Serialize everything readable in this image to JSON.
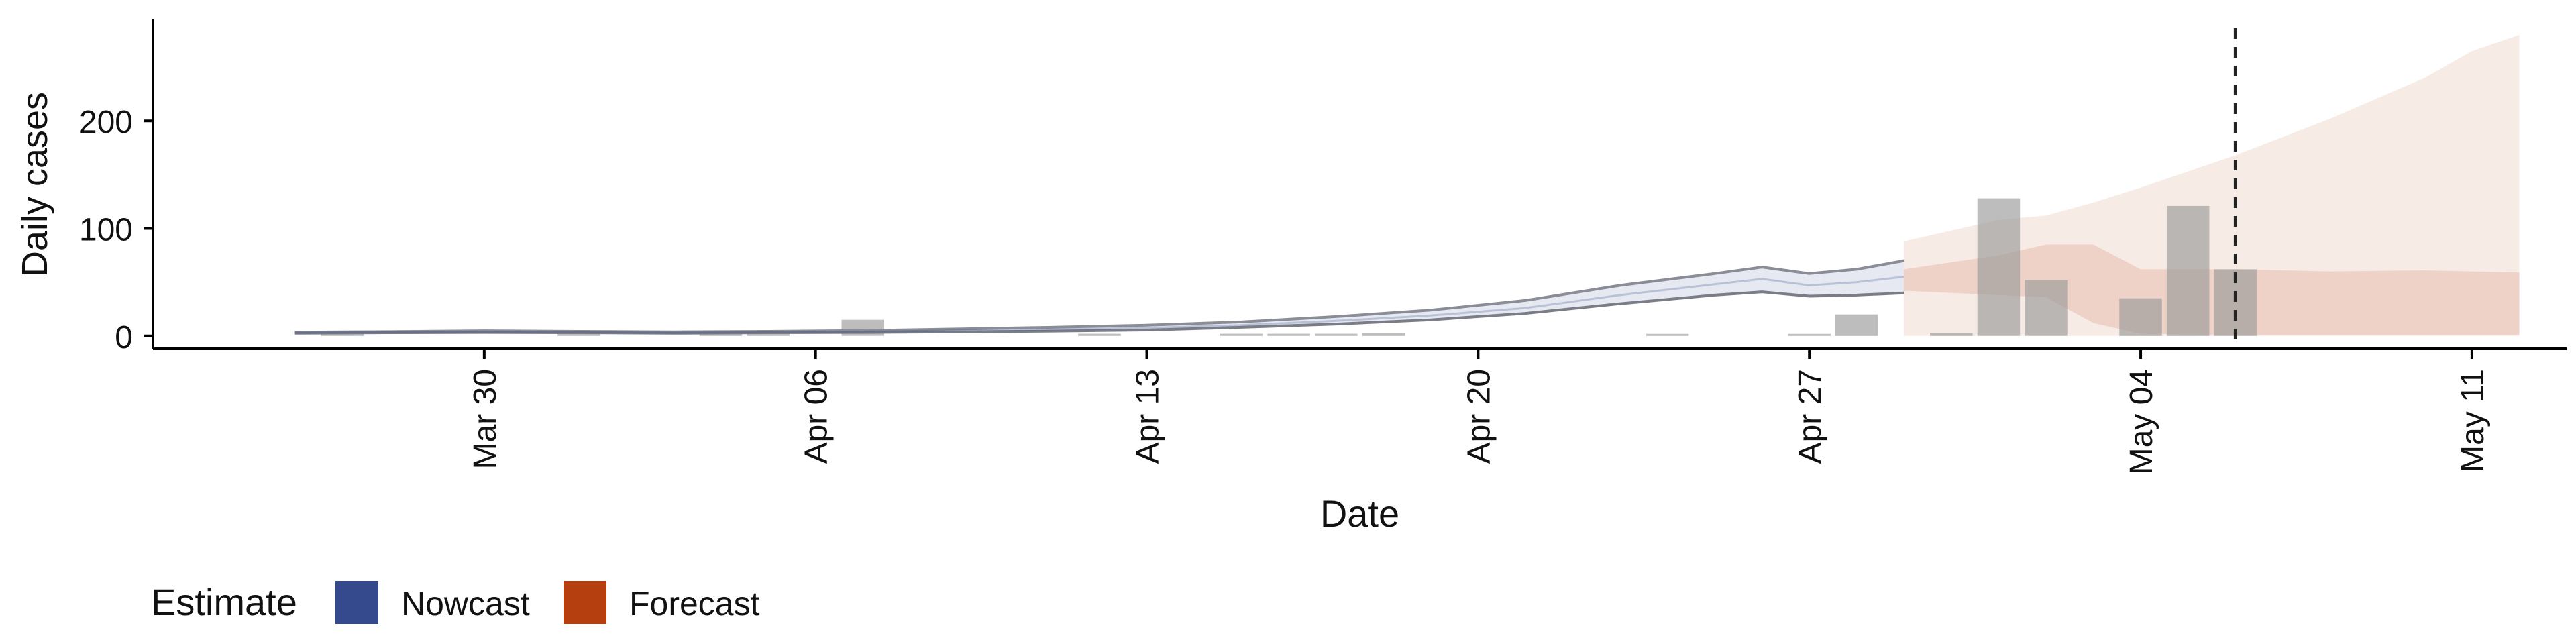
{
  "chart_data": {
    "type": "bar",
    "xlabel": "Date",
    "ylabel": "Daily cases",
    "xlim": [
      "2020-03-23",
      "2020-05-13"
    ],
    "ylim": [
      -12,
      295
    ],
    "x_ticks": [
      "2020-03-30",
      "2020-04-06",
      "2020-04-13",
      "2020-04-20",
      "2020-04-27",
      "2020-05-04",
      "2020-05-11"
    ],
    "x_tick_labels": [
      "Mar 30",
      "Apr 06",
      "Apr 13",
      "Apr 20",
      "Apr 27",
      "May 04",
      "May 11"
    ],
    "y_ticks": [
      0,
      100,
      200
    ],
    "grid": false,
    "legend_placement": "bottom-left",
    "reference_line_date": "2020-05-06",
    "legend": {
      "title": "Estimate",
      "items": [
        {
          "label": "Nowcast",
          "color": "#354A8C"
        },
        {
          "label": "Forecast",
          "color": "#B53F0E"
        }
      ]
    },
    "observed_cases": {
      "color": "#9A9A9A",
      "dates": [
        "2020-03-27",
        "2020-04-01",
        "2020-04-04",
        "2020-04-05",
        "2020-04-07",
        "2020-04-12",
        "2020-04-15",
        "2020-04-16",
        "2020-04-17",
        "2020-04-18",
        "2020-04-24",
        "2020-04-27",
        "2020-04-28",
        "2020-04-30",
        "2020-05-01",
        "2020-05-02",
        "2020-05-04",
        "2020-05-05",
        "2020-05-06"
      ],
      "values": [
        1,
        4,
        3,
        2,
        15,
        2,
        2,
        2,
        2,
        3,
        1,
        1,
        20,
        3,
        128,
        52,
        35,
        121,
        62
      ]
    },
    "nowcast": {
      "color": "#354A8C",
      "dates": [
        "2020-03-26",
        "2020-03-28",
        "2020-03-30",
        "2020-04-01",
        "2020-04-03",
        "2020-04-05",
        "2020-04-07",
        "2020-04-09",
        "2020-04-11",
        "2020-04-13",
        "2020-04-15",
        "2020-04-17",
        "2020-04-19",
        "2020-04-21",
        "2020-04-23",
        "2020-04-25",
        "2020-04-26",
        "2020-04-27",
        "2020-04-28",
        "2020-04-29"
      ],
      "median": [
        3,
        3.5,
        4,
        3.5,
        3,
        3.5,
        4,
        5,
        6,
        7.5,
        10,
        14,
        19,
        26,
        38,
        48,
        53,
        47,
        50,
        55
      ],
      "lower": [
        2.5,
        3,
        3.2,
        3,
        2.5,
        3,
        3.2,
        3.8,
        4.5,
        5.5,
        8,
        11,
        15,
        21,
        30,
        38,
        41,
        37,
        38,
        40
      ],
      "upper": [
        3.5,
        4,
        4.8,
        4.2,
        3.8,
        4.2,
        5,
        6.5,
        8,
        10,
        13,
        18,
        24,
        33,
        47,
        58,
        64,
        58,
        62,
        70
      ]
    },
    "forecast": {
      "color": "#B53F0E",
      "dates": [
        "2020-04-29",
        "2020-05-01",
        "2020-05-02",
        "2020-05-03",
        "2020-05-04",
        "2020-05-06",
        "2020-05-08",
        "2020-05-10",
        "2020-05-11",
        "2020-05-12"
      ],
      "inner_lower": [
        42,
        38,
        36,
        12,
        2,
        1,
        1,
        1,
        1,
        1
      ],
      "inner_upper": [
        62,
        75,
        85,
        85,
        62,
        62,
        60,
        61,
        60,
        59
      ],
      "outer_lower": [
        0,
        0,
        0,
        0,
        0,
        0,
        0,
        0,
        0,
        0
      ],
      "outer_upper": [
        88,
        108,
        112,
        124,
        138,
        168,
        202,
        240,
        265,
        280
      ]
    }
  }
}
